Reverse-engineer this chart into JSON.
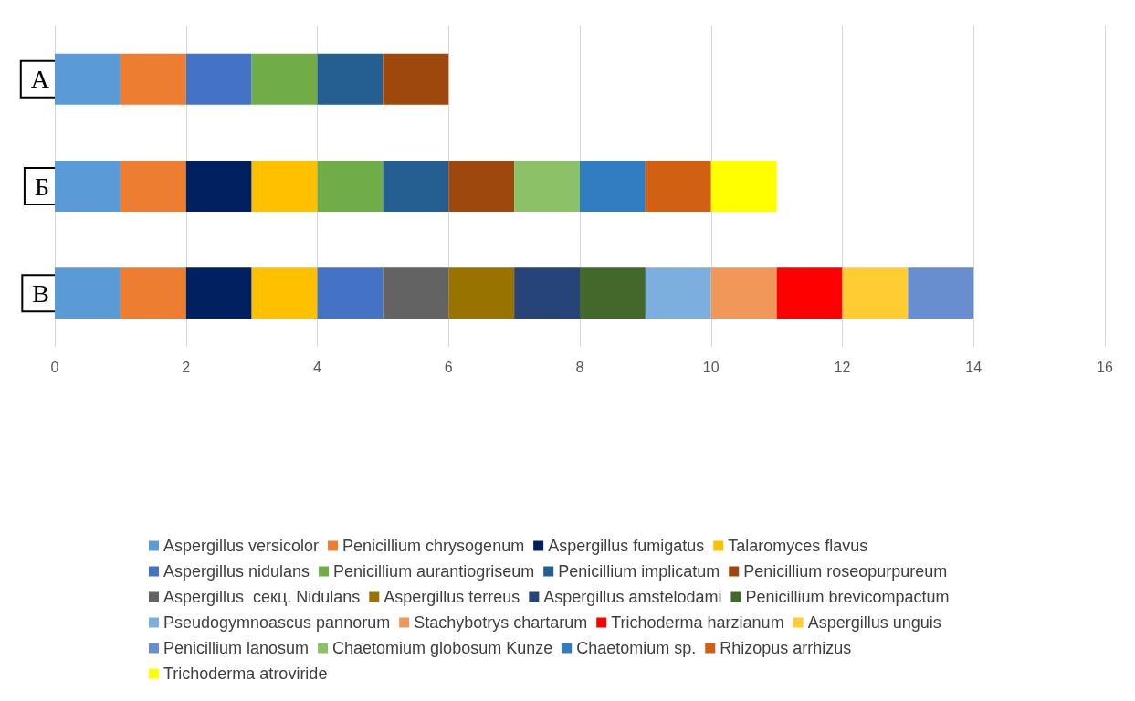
{
  "chart_data": {
    "type": "bar",
    "orientation": "horizontal",
    "stacked": true,
    "categories": [
      "А",
      "Б",
      "В"
    ],
    "xlim": [
      0,
      16
    ],
    "xticks": [
      0,
      2,
      4,
      6,
      8,
      10,
      12,
      14,
      16
    ],
    "grid": "x",
    "legend": "bottom",
    "series": [
      {
        "name": "Aspergillus versicolor",
        "color": "#5b9bd5",
        "values": [
          1,
          1,
          1
        ]
      },
      {
        "name": "Penicillium chrysogenum",
        "color": "#ed7d31",
        "values": [
          1,
          1,
          1
        ]
      },
      {
        "name": "Aspergillus fumigatus",
        "color": "#002060",
        "values": [
          null,
          1,
          1
        ]
      },
      {
        "name": "Talaromyces flavus",
        "color": "#ffc000",
        "values": [
          null,
          1,
          1
        ]
      },
      {
        "name": "Aspergillus nidulans",
        "color": "#4472c4",
        "values": [
          1,
          null,
          1
        ]
      },
      {
        "name": "Penicillium aurantiogriseum",
        "color": "#70ad47",
        "values": [
          1,
          1,
          null
        ]
      },
      {
        "name": "Penicillium implicatum",
        "color": "#255e91",
        "values": [
          1,
          1,
          null
        ]
      },
      {
        "name": "Penicillium roseopurpureum",
        "color": "#9e480e",
        "values": [
          1,
          1,
          null
        ]
      },
      {
        "name": "Aspergillus  секц. Nidulans",
        "color": "#636363",
        "values": [
          null,
          null,
          1
        ]
      },
      {
        "name": "Aspergillus terreus",
        "color": "#997300",
        "values": [
          null,
          null,
          1
        ]
      },
      {
        "name": "Aspergillus amstelodami",
        "color": "#264478",
        "values": [
          null,
          null,
          1
        ]
      },
      {
        "name": "Penicillium brevicompactum",
        "color": "#43682b",
        "values": [
          null,
          null,
          1
        ]
      },
      {
        "name": "Pseudogymnoascus pannorum",
        "color": "#7cafdd",
        "values": [
          null,
          null,
          1
        ]
      },
      {
        "name": "Stachybotrys chartarum",
        "color": "#f1975a",
        "values": [
          null,
          null,
          1
        ]
      },
      {
        "name": "Trichoderma harzianum",
        "color": "#ff0000",
        "values": [
          null,
          null,
          1
        ]
      },
      {
        "name": "Aspergillus unguis",
        "color": "#ffcd33",
        "values": [
          null,
          null,
          1
        ]
      },
      {
        "name": "Penicillium lanosum",
        "color": "#698ed0",
        "values": [
          null,
          null,
          1
        ]
      },
      {
        "name": "Chaetomium globosum Kunze",
        "color": "#8cc168",
        "values": [
          null,
          1,
          null
        ]
      },
      {
        "name": "Chaetomium sp.",
        "color": "#327dc2",
        "values": [
          null,
          1,
          null
        ]
      },
      {
        "name": "Rhizopus arrhizus",
        "color": "#d26012",
        "values": [
          null,
          1,
          null
        ]
      },
      {
        "name": "Trichoderma atroviride",
        "color": "#ffff00",
        "values": [
          null,
          1,
          null
        ]
      }
    ]
  }
}
